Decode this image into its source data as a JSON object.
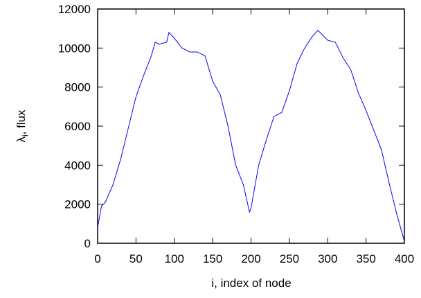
{
  "chart_data": {
    "type": "line",
    "xlabel": "i, index of node",
    "ylabel": [
      "λ",
      "i",
      ", flux"
    ],
    "x": [
      0,
      5,
      10,
      20,
      30,
      40,
      50,
      60,
      70,
      75,
      80,
      90,
      93,
      100,
      110,
      120,
      130,
      140,
      150,
      160,
      170,
      180,
      190,
      198,
      200,
      210,
      220,
      230,
      240,
      250,
      260,
      270,
      280,
      287,
      290,
      300,
      310,
      320,
      330,
      340,
      350,
      360,
      370,
      380,
      390,
      400
    ],
    "series": [
      {
        "color": "#0000ff",
        "values": [
          800,
          1900,
          2100,
          3000,
          4300,
          5900,
          7500,
          8600,
          9600,
          10300,
          10200,
          10300,
          10800,
          10500,
          10000,
          9800,
          9800,
          9600,
          8300,
          7600,
          6000,
          4000,
          3000,
          1600,
          1800,
          4000,
          5300,
          6500,
          6700,
          7800,
          9200,
          10000,
          10600,
          10900,
          10800,
          10400,
          10300,
          9500,
          8900,
          7700,
          6800,
          5800,
          4800,
          3100,
          1500,
          100
        ]
      }
    ],
    "xlim": [
      0,
      400
    ],
    "xticks": [
      0,
      50,
      100,
      150,
      200,
      250,
      300,
      350,
      400
    ],
    "ylim": [
      0,
      12000
    ],
    "yticks": [
      0,
      2000,
      4000,
      6000,
      8000,
      10000,
      12000
    ]
  }
}
